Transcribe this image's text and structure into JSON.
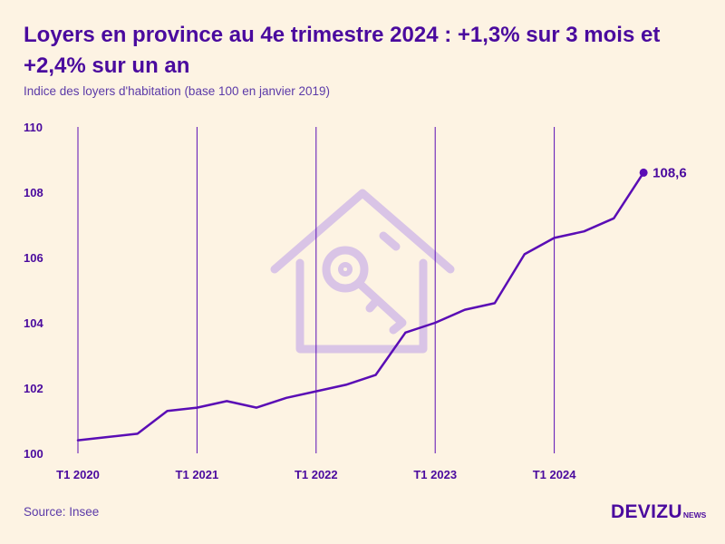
{
  "title": "Loyers en province au 4e trimestre 2024 : +1,3% sur 3 mois et +2,4% sur un an",
  "subtitle": "Indice des loyers d'habitation (base 100 en janvier 2019)",
  "source": "Source: Insee",
  "logo": {
    "main": "DEVIZU",
    "sub": "NEWS"
  },
  "colors": {
    "background": "#fdf3e3",
    "accent": "#4a0a9e",
    "line": "#5a0db5",
    "watermark": "#d9c4e6"
  },
  "watermark_icon": "house-key-icon",
  "chart_data": {
    "type": "line",
    "title": "Loyers en province au 4e trimestre 2024 : +1,3% sur 3 mois et +2,4% sur un an",
    "subtitle": "Indice des loyers d'habitation (base 100 en janvier 2019)",
    "xlabel": "",
    "ylabel": "",
    "xlim": [
      "T1 2020",
      "T4 2024"
    ],
    "ylim": [
      100,
      110
    ],
    "yticks": [
      "100",
      "102",
      "104",
      "106",
      "108",
      "110"
    ],
    "xticks": [
      "T1 2020",
      "T1 2021",
      "T1 2022",
      "T1 2023",
      "T1 2024"
    ],
    "x": [
      "T1 2020",
      "T2 2020",
      "T3 2020",
      "T4 2020",
      "T1 2021",
      "T2 2021",
      "T3 2021",
      "T4 2021",
      "T1 2022",
      "T2 2022",
      "T3 2022",
      "T4 2022",
      "T1 2023",
      "T2 2023",
      "T3 2023",
      "T4 2023",
      "T1 2024",
      "T2 2024",
      "T3 2024",
      "T4 2024"
    ],
    "series": [
      {
        "values": [
          100.4,
          100.5,
          100.6,
          101.3,
          101.4,
          101.6,
          101.4,
          101.7,
          101.9,
          102.1,
          102.4,
          103.7,
          104.0,
          104.4,
          104.6,
          106.1,
          106.6,
          106.8,
          107.2,
          108.6
        ]
      }
    ],
    "end_label": "108,6",
    "grid": "vertical lines at each T1"
  }
}
